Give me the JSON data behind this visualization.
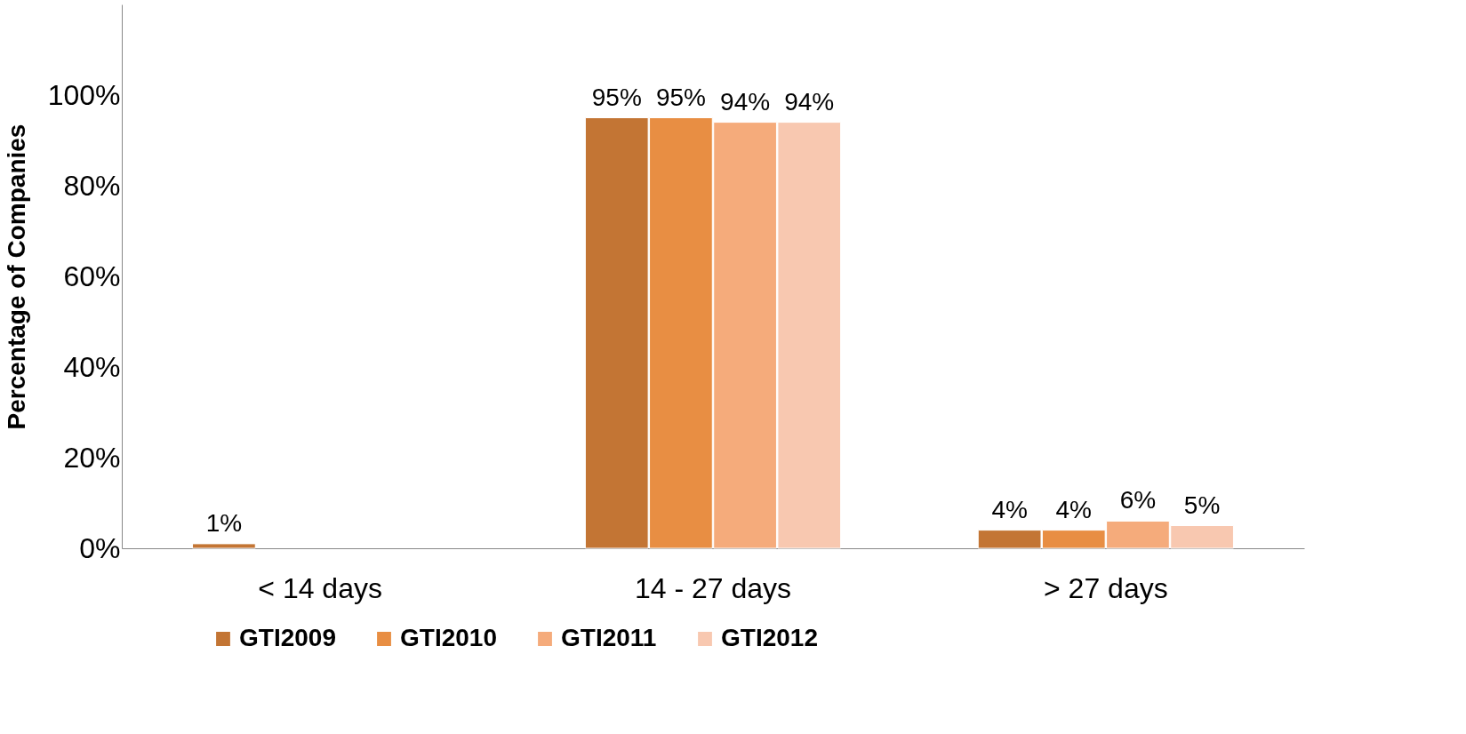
{
  "chart_data": {
    "type": "bar",
    "ylabel": "Percentage of Companies",
    "categories": [
      "< 14 days",
      "14 - 27 days",
      "> 27 days"
    ],
    "series": [
      {
        "name": "GTI2009",
        "color": "#c37534",
        "values": [
          1,
          95,
          4
        ],
        "value_labels": [
          "1%",
          "95%",
          "4%"
        ]
      },
      {
        "name": "GTI2010",
        "color": "#e88e43",
        "values": [
          null,
          95,
          4
        ],
        "value_labels": [
          null,
          "95%",
          "4%"
        ]
      },
      {
        "name": "GTI2011",
        "color": "#f5ab7b",
        "values": [
          null,
          94,
          6
        ],
        "value_labels": [
          null,
          "94%",
          "6%"
        ]
      },
      {
        "name": "GTI2012",
        "color": "#f8c8b0",
        "values": [
          null,
          94,
          5
        ],
        "value_labels": [
          null,
          "94%",
          "5%"
        ]
      }
    ],
    "ylim": [
      0,
      120
    ],
    "yticks": [
      {
        "value": 0,
        "label": "0%"
      },
      {
        "value": 20,
        "label": "20%"
      },
      {
        "value": 40,
        "label": "40%"
      },
      {
        "value": 60,
        "label": "60%"
      },
      {
        "value": 80,
        "label": "80%"
      },
      {
        "value": 100,
        "label": "100%"
      }
    ],
    "grid": false,
    "legend": "bottom"
  }
}
